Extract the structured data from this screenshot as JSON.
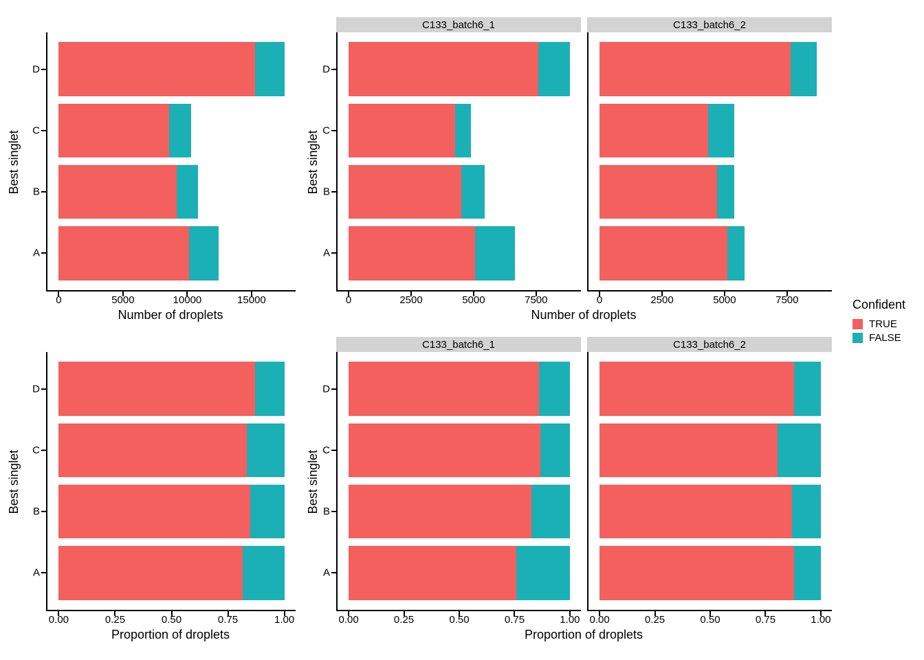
{
  "figure": {
    "background": "#ffffff",
    "axis_color": "#000000",
    "strip_color": "#d3d3d3"
  },
  "legend": {
    "title": "Confident",
    "items": [
      {
        "label": "TRUE",
        "color": "#f3605d"
      },
      {
        "label": "FALSE",
        "color": "#1bb0b6"
      }
    ]
  },
  "chart_data": [
    {
      "type": "bar",
      "orientation": "horizontal",
      "stacked": true,
      "position": "top-left",
      "x_label": "Number of droplets",
      "y_label": "Best singlet",
      "categories": [
        "A",
        "B",
        "C",
        "D"
      ],
      "series": [
        {
          "name": "TRUE",
          "values": [
            10150,
            9200,
            8600,
            15250
          ]
        },
        {
          "name": "FALSE",
          "values": [
            2300,
            1650,
            1700,
            2300
          ]
        }
      ],
      "x_ticks": [
        0,
        5000,
        10000,
        15000
      ],
      "x_tick_labels": [
        "0",
        "5000",
        "10000",
        "15000"
      ],
      "xlim": [
        0,
        18400
      ],
      "grid": false
    },
    {
      "type": "bar",
      "orientation": "horizontal",
      "stacked": true,
      "position": "top-right",
      "x_label": "Number of droplets",
      "y_label": "Best singlet",
      "categories": [
        "A",
        "B",
        "C",
        "D"
      ],
      "facets": [
        {
          "label": "C133_batch6_1",
          "series": [
            {
              "name": "TRUE",
              "values": [
                5050,
                4500,
                4250,
                7600
              ]
            },
            {
              "name": "FALSE",
              "values": [
                1600,
                950,
                650,
                1250
              ]
            }
          ]
        },
        {
          "label": "C133_batch6_2",
          "series": [
            {
              "name": "TRUE",
              "values": [
                5100,
                4700,
                4350,
                7650
              ]
            },
            {
              "name": "FALSE",
              "values": [
                700,
                700,
                1050,
                1050
              ]
            }
          ]
        }
      ],
      "x_ticks": [
        0,
        2500,
        5000,
        7500
      ],
      "x_tick_labels": [
        "0",
        "2500",
        "5000",
        "7500"
      ],
      "xlim": [
        0,
        9300
      ],
      "grid": false
    },
    {
      "type": "bar",
      "orientation": "horizontal",
      "stacked": true,
      "position": "bottom-left",
      "x_label": "Proportion of droplets",
      "y_label": "Best singlet",
      "categories": [
        "A",
        "B",
        "C",
        "D"
      ],
      "series": [
        {
          "name": "TRUE",
          "values": [
            0.815,
            0.848,
            0.835,
            0.869
          ]
        },
        {
          "name": "FALSE",
          "values": [
            0.185,
            0.152,
            0.165,
            0.131
          ]
        }
      ],
      "x_ticks": [
        0,
        0.25,
        0.5,
        0.75,
        1
      ],
      "x_tick_labels": [
        "0.00",
        "0.25",
        "0.50",
        "0.75",
        "1.00"
      ],
      "xlim": [
        0,
        1.05
      ],
      "grid": false
    },
    {
      "type": "bar",
      "orientation": "horizontal",
      "stacked": true,
      "position": "bottom-right",
      "x_label": "Proportion of droplets",
      "y_label": "Best singlet",
      "categories": [
        "A",
        "B",
        "C",
        "D"
      ],
      "facets": [
        {
          "label": "C133_batch6_1",
          "series": [
            {
              "name": "TRUE",
              "values": [
                0.759,
                0.826,
                0.867,
                0.859
              ]
            },
            {
              "name": "FALSE",
              "values": [
                0.241,
                0.174,
                0.133,
                0.141
              ]
            }
          ]
        },
        {
          "label": "C133_batch6_2",
          "series": [
            {
              "name": "TRUE",
              "values": [
                0.879,
                0.87,
                0.806,
                0.879
              ]
            },
            {
              "name": "FALSE",
              "values": [
                0.121,
                0.13,
                0.194,
                0.121
              ]
            }
          ]
        }
      ],
      "x_ticks": [
        0,
        0.25,
        0.5,
        0.75,
        1
      ],
      "x_tick_labels": [
        "0.00",
        "0.25",
        "0.50",
        "0.75",
        "1.00"
      ],
      "xlim": [
        0,
        1.05
      ],
      "grid": false
    }
  ]
}
